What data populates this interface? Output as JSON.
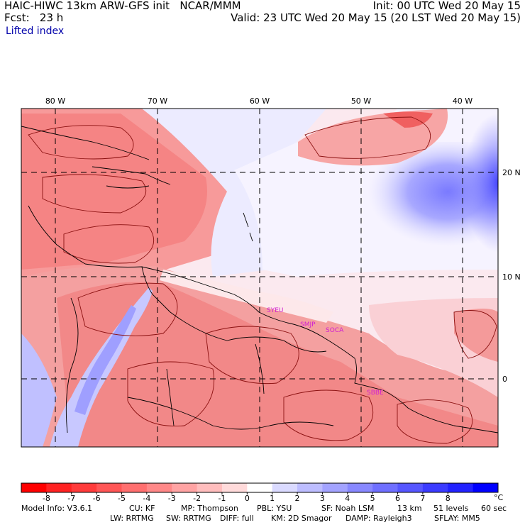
{
  "header": {
    "line1_left": "HAIC-HIWC 13km ARW-GFS init   NCAR/MMM",
    "line2_left": "Fcst:   23 h",
    "line1_right": "Init: 00 UTC Wed 20 May 15",
    "line2_right": "Valid: 23 UTC Wed 20 May 15 (20 LST Wed 20 May 15)",
    "field": "Lifted index"
  },
  "map": {
    "lon_labels": [
      "80 W",
      "70 W",
      "60 W",
      "50 W",
      "40 W"
    ],
    "lat_labels": [
      "20 N",
      "10 N",
      "0"
    ],
    "stations": [
      "SYEU",
      "SMJP",
      "SOCA",
      "SBBE"
    ]
  },
  "colorbar": {
    "ticks": [
      "-8",
      "-7",
      "-6",
      "-5",
      "-4",
      "-3",
      "-2",
      "-1",
      "0",
      "1",
      "2",
      "3",
      "4",
      "5",
      "6",
      "7",
      "8"
    ],
    "unit": "°C",
    "colors": [
      "#ff0000",
      "#ff2222",
      "#ff3b3b",
      "#ff5656",
      "#ff6f6f",
      "#ff8888",
      "#ffa3a3",
      "#ffbdbd",
      "#ffdada",
      "#ffffff",
      "#dadaff",
      "#bdbdff",
      "#a3a3ff",
      "#8888ff",
      "#6f6fff",
      "#5656ff",
      "#3b3bff",
      "#2222ff",
      "#0000ff"
    ]
  },
  "footer": {
    "model_info": "Model Info: V3.6.1",
    "cu": "CU: KF",
    "mp": "MP: Thompson",
    "pbl": "PBL: YSU",
    "sf": "SF: Noah LSM",
    "res": "13 km",
    "levels": "51 levels",
    "dt": "60 sec",
    "lw": "LW: RRTMG",
    "sw": "SW: RRTMG",
    "diff": "DIFF: full",
    "km": "KM: 2D Smagor",
    "damp": "DAMP: Rayleigh3",
    "sflay": "SFLAY: MM5"
  }
}
